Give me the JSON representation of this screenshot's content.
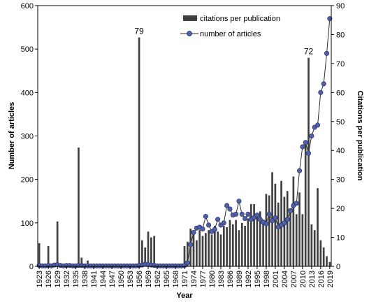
{
  "chart_data": {
    "type": "bar",
    "x_start": 1923,
    "x_end": 2019,
    "x_tick_labels": [
      "1923",
      "1926",
      "1929",
      "1932",
      "1935",
      "1938",
      "1941",
      "1944",
      "1947",
      "1950",
      "1953",
      "1956",
      "1959",
      "1962",
      "1965",
      "1968",
      "1971",
      "1974",
      "1977",
      "1980",
      "1983",
      "1986",
      "1989",
      "1992",
      "1995",
      "1998",
      "2001",
      "2004",
      "2007",
      "2010",
      "2013",
      "2016",
      "2019"
    ],
    "xlabel": "Year",
    "ylabel_left": "Number of articles",
    "ylabel_right": "Citations per publication",
    "ylim_left": [
      0,
      600
    ],
    "ylim_right": [
      0,
      90
    ],
    "yticks_left": [
      "0",
      "100",
      "200",
      "300",
      "400",
      "500",
      "600"
    ],
    "yticks_right": [
      "0",
      "10",
      "20",
      "30",
      "40",
      "50",
      "60",
      "70",
      "80",
      "90"
    ],
    "legend_position": "top-center",
    "grid": false,
    "series": [
      {
        "name": "citations per publication",
        "kind": "bar",
        "axis": "right",
        "color": "#404040",
        "years": [
          1923,
          1926,
          1929,
          1933,
          1936,
          1937,
          1939,
          1956,
          1957,
          1958,
          1959,
          1960,
          1961,
          1971,
          1972,
          1973,
          1974,
          1975,
          1976,
          1977,
          1978,
          1979,
          1980,
          1981,
          1982,
          1983,
          1984,
          1985,
          1986,
          1987,
          1988,
          1989,
          1990,
          1991,
          1992,
          1993,
          1994,
          1995,
          1996,
          1997,
          1998,
          1999,
          2000,
          2001,
          2002,
          2003,
          2004,
          2005,
          2006,
          2007,
          2008,
          2009,
          2010,
          2011,
          2012,
          2013,
          2014,
          2015,
          2016,
          2017,
          2018,
          2019
        ],
        "values": [
          8,
          7,
          15.5,
          1,
          41,
          3,
          2,
          79,
          9,
          6.5,
          12,
          10,
          10.5,
          7,
          8.5,
          13,
          11.5,
          9,
          12.5,
          10.5,
          11.5,
          12.5,
          11,
          14,
          12,
          11,
          14,
          13.5,
          16,
          14.5,
          16,
          12.5,
          15,
          14,
          16.5,
          21.5,
          21.5,
          17,
          19,
          15,
          25,
          24.5,
          32.5,
          28.5,
          22,
          29.5,
          24,
          26,
          20,
          31,
          18,
          25.5,
          18,
          42.5,
          72,
          14.5,
          12.5,
          27,
          9,
          6.5,
          3.5,
          1.5
        ]
      },
      {
        "name": "number of articles",
        "kind": "line",
        "axis": "left",
        "color": "#4f5fa8",
        "years": [
          1923,
          1924,
          1925,
          1926,
          1927,
          1928,
          1929,
          1930,
          1931,
          1932,
          1933,
          1934,
          1935,
          1936,
          1937,
          1938,
          1939,
          1940,
          1941,
          1942,
          1943,
          1944,
          1945,
          1946,
          1947,
          1948,
          1949,
          1950,
          1951,
          1952,
          1953,
          1954,
          1955,
          1956,
          1957,
          1958,
          1959,
          1960,
          1961,
          1962,
          1963,
          1964,
          1965,
          1966,
          1967,
          1968,
          1969,
          1970,
          1971,
          1972,
          1973,
          1974,
          1975,
          1976,
          1977,
          1978,
          1979,
          1980,
          1981,
          1982,
          1983,
          1984,
          1985,
          1986,
          1987,
          1988,
          1989,
          1990,
          1991,
          1992,
          1993,
          1994,
          1995,
          1996,
          1997,
          1998,
          1999,
          2000,
          2001,
          2002,
          2003,
          2004,
          2005,
          2006,
          2007,
          2008,
          2009,
          2010,
          2011,
          2012,
          2013,
          2014,
          2015,
          2016,
          2017,
          2018,
          2019
        ],
        "values": [
          2,
          1,
          1,
          2,
          1,
          3,
          4,
          2,
          1,
          2,
          2,
          1,
          1,
          2,
          2,
          1,
          1,
          1,
          1,
          1,
          1,
          1,
          1,
          1,
          1,
          1,
          1,
          1,
          1,
          1,
          1,
          1,
          1,
          2,
          3,
          5,
          4,
          3,
          2,
          1,
          1,
          1,
          1,
          1,
          1,
          1,
          1,
          1,
          2,
          8,
          50,
          78,
          88,
          90,
          86,
          115,
          95,
          80,
          85,
          108,
          95,
          100,
          140,
          132,
          118,
          120,
          150,
          120,
          110,
          120,
          108,
          112,
          118,
          108,
          102,
          98,
          120,
          105,
          112,
          90,
          95,
          100,
          108,
          128,
          140,
          145,
          220,
          275,
          285,
          260,
          300,
          320,
          325,
          400,
          420,
          490,
          570
        ]
      }
    ],
    "annotations": [
      {
        "text": "79",
        "year": 1956,
        "value": 79,
        "axis": "right"
      },
      {
        "text": "72",
        "year": 2012,
        "value": 72,
        "axis": "right"
      }
    ]
  }
}
